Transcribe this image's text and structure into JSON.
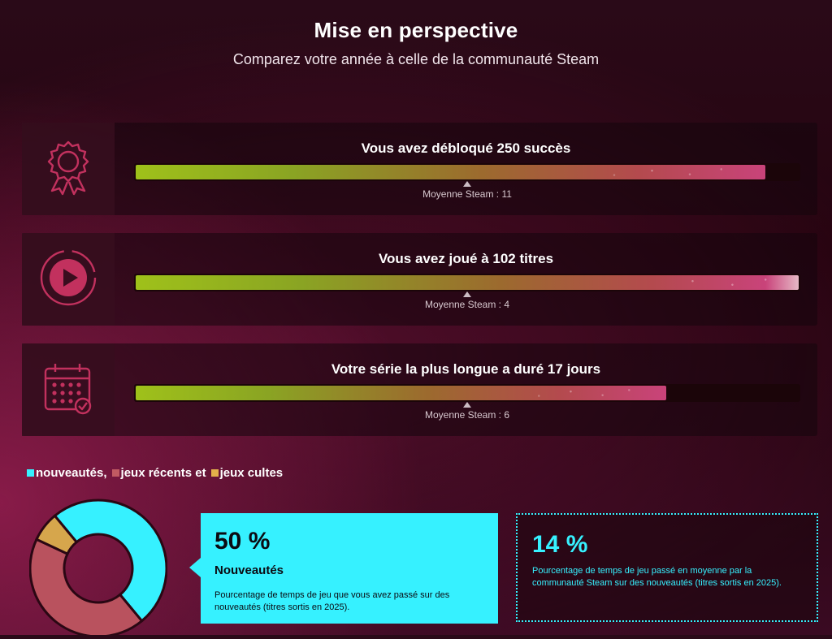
{
  "header": {
    "title": "Mise en perspective",
    "subtitle": "Comparez votre année à celle de la communauté Steam"
  },
  "stats": [
    {
      "icon": "award-ribbon-icon",
      "title": "Vous avez débloqué 250 succès",
      "fill_fraction": 0.95,
      "average_fraction": 0.5,
      "average_label": "Moyenne Steam : 11"
    },
    {
      "icon": "play-circle-icon",
      "title": "Vous avez joué à 102 titres",
      "fill_fraction": 1.0,
      "average_fraction": 0.5,
      "average_label": "Moyenne Steam : 4"
    },
    {
      "icon": "calendar-check-icon",
      "title": "Votre série la plus longue a duré 17 jours",
      "fill_fraction": 0.8,
      "average_fraction": 0.5,
      "average_label": "Moyenne Steam : 6"
    }
  ],
  "legend": {
    "items": [
      {
        "label": "nouveautés,",
        "color": "#36f1ff"
      },
      {
        "label": "jeux récents et",
        "color": "#c05a62"
      },
      {
        "label": "jeux cultes",
        "color": "#e2b04a"
      }
    ]
  },
  "donut": {
    "segments": [
      {
        "name": "nouveautés",
        "percent": 50,
        "color": "#36f1ff"
      },
      {
        "name": "jeux récents",
        "percent": 43,
        "color": "#b9525e"
      },
      {
        "name": "jeux cultes",
        "percent": 7,
        "color": "#d6a64c"
      }
    ]
  },
  "panel_you": {
    "percent": "50 %",
    "label": "Nouveautés",
    "description": "Pourcentage de temps de jeu que vous avez passé sur des nouveautés (titres sortis en 2025)."
  },
  "panel_community": {
    "percent": "14 %",
    "description": "Pourcentage de temps de jeu passé en moyenne par la communauté Steam sur des nouveautés (titres sortis en 2025)."
  },
  "colors": {
    "accent_cyan": "#36f1ff",
    "icon_pink": "#c2315e"
  }
}
